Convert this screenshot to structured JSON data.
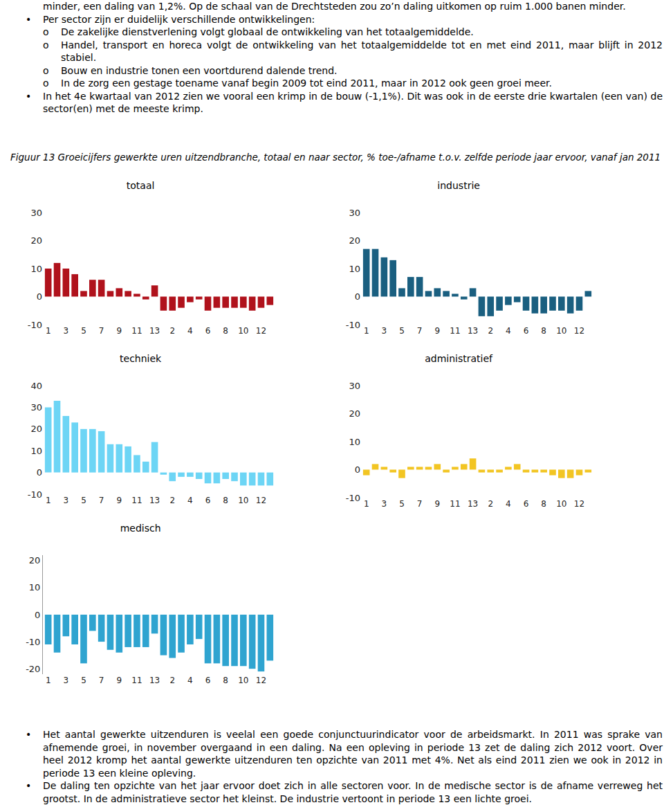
{
  "document": {
    "intro": "minder, een daling van 1,2%. Op de schaal van de Drechtsteden zou zo’n daling uitkomen op ruim 1.000 banen minder.",
    "bullets": [
      {
        "text": "Per sector zijn er duidelijk verschillende ontwikkelingen:",
        "sub": [
          "De zakelijke dienstverlening volgt globaal de ontwikkeling van het totaalgemiddelde.",
          "Handel, transport en horeca volgt de ontwikkeling van het totaalgemiddelde tot en met eind 2011, maar blijft in 2012 stabiel.",
          "Bouw en industrie tonen een voortdurend dalende trend.",
          "In de zorg een gestage toename vanaf begin 2009 tot eind 2011, maar in 2012 ook geen groei meer."
        ]
      },
      {
        "text": "In het 4e kwartaal van 2012 zien we vooral een krimp in de bouw (-1,1%). Dit was ook in de eerste drie kwartalen (een van) de sector(en) met de meeste krimp.",
        "sub": []
      }
    ],
    "caption": "Figuur 13 Groeicijfers gewerkte uren uitzendbranche, totaal en naar sector, % toe-/afname t.o.v. zelfde periode jaar ervoor, vanaf jan 2011",
    "closing": [
      "Het aantal gewerkte uitzenduren is veelal een goede conjunctuurindicator voor de arbeidsmarkt. In 2011 was sprake van afnemende groei, in november overgaand in een daling. Na een opleving in periode 13 zet de daling zich 2012 voort. Over heel 2012 kromp het aantal gewerkte uitzenduren ten opzichte van 2011 met 4%. Net als eind 2011 zien we ook in 2012 in periode 13 een kleine opleving.",
      "De daling ten opzichte van het jaar ervoor doet zich in alle sectoren voor. In de medische sector is de afname verreweg het grootst. In de administratieve sector het kleinst. De industrie vertoont in periode 13 een lichte groei."
    ]
  },
  "chart_data": [
    {
      "type": "bar",
      "title": "totaal",
      "color": "#b0121c",
      "grid": false,
      "categories": [
        "1",
        null,
        "3",
        null,
        "5",
        null,
        "7",
        null,
        "9",
        null,
        "11",
        null,
        "13",
        null,
        "2",
        null,
        "4",
        null,
        "6",
        null,
        "8",
        null,
        "10",
        null,
        "12",
        null
      ],
      "values": [
        10,
        12,
        10,
        8,
        2,
        6,
        6,
        2,
        3,
        2,
        1,
        -1,
        4,
        -5,
        -5,
        -4,
        -2,
        -1,
        -5,
        -4,
        -4,
        -4,
        -4,
        -5,
        -4,
        -3
      ],
      "ylim": [
        -10,
        30
      ],
      "yticks": [
        -10,
        0,
        10,
        20,
        30
      ]
    },
    {
      "type": "bar",
      "title": "industrie",
      "color": "#1a5f80",
      "grid": false,
      "categories": [
        "1",
        null,
        "3",
        null,
        "5",
        null,
        "7",
        null,
        "9",
        null,
        "11",
        null,
        "13",
        null,
        "2",
        null,
        "4",
        null,
        "6",
        null,
        "8",
        null,
        "10",
        null,
        "12",
        null
      ],
      "values": [
        17,
        17,
        14,
        13,
        3,
        7,
        7,
        2,
        3,
        2,
        1,
        -1,
        3,
        -7,
        -7,
        -5,
        -3,
        -2,
        -5,
        -6,
        -6,
        -5,
        -5,
        -6,
        -5,
        2
      ],
      "ylim": [
        -10,
        30
      ],
      "yticks": [
        -10,
        0,
        10,
        20,
        30
      ]
    },
    {
      "type": "bar",
      "title": "techniek",
      "color": "#6dd5f5",
      "grid": false,
      "categories": [
        "1",
        null,
        "3",
        null,
        "5",
        null,
        "7",
        null,
        "9",
        null,
        "11",
        null,
        "13",
        null,
        "2",
        null,
        "4",
        null,
        "6",
        null,
        "8",
        null,
        "10",
        null,
        "12",
        null
      ],
      "values": [
        30,
        33,
        26,
        23,
        20,
        20,
        19,
        13,
        13,
        12,
        8,
        5,
        14,
        -1,
        -4,
        -2,
        -2,
        -3,
        -5,
        -5,
        -3,
        -4,
        -6,
        -6,
        -6,
        -6
      ],
      "ylim": [
        -10,
        40
      ],
      "yticks": [
        -10,
        0,
        10,
        20,
        30,
        40
      ]
    },
    {
      "type": "bar",
      "title": "administratief",
      "color": "#f2c523",
      "grid": false,
      "categories": [
        "1",
        null,
        "3",
        null,
        "5",
        null,
        "7",
        null,
        "9",
        null,
        "11",
        null,
        "13",
        null,
        "2",
        null,
        "4",
        null,
        "6",
        null,
        "8",
        null,
        "10",
        null,
        "12",
        null
      ],
      "values": [
        -2,
        2,
        1,
        -1,
        -3,
        1,
        1,
        1,
        2,
        -1,
        1,
        2,
        4,
        -1,
        -1,
        -1,
        1,
        2,
        -1,
        -1,
        -1,
        -2,
        -3,
        -3,
        -2,
        -1
      ],
      "ylim": [
        -10,
        30
      ],
      "yticks": [
        -10,
        0,
        10,
        20,
        30
      ]
    },
    {
      "type": "bar",
      "title": "medisch",
      "color": "#2fa4d0",
      "grid": false,
      "categories": [
        "1",
        null,
        "3",
        null,
        "5",
        null,
        "7",
        null,
        "9",
        null,
        "11",
        null,
        "13",
        null,
        "2",
        null,
        "4",
        null,
        "6",
        null,
        "8",
        null,
        "10",
        null,
        "12",
        null
      ],
      "values": [
        -11,
        -14,
        -8,
        -11,
        -18,
        -6,
        -10,
        -13,
        -14,
        -12,
        -12,
        -12,
        -7,
        -15,
        -16,
        -14,
        -11,
        -9,
        -18,
        -18,
        -19,
        -19,
        -19,
        -20,
        -21,
        -17
      ],
      "ylim": [
        -22,
        22
      ],
      "yticks": [
        -20,
        -10,
        0,
        10,
        20
      ]
    }
  ]
}
